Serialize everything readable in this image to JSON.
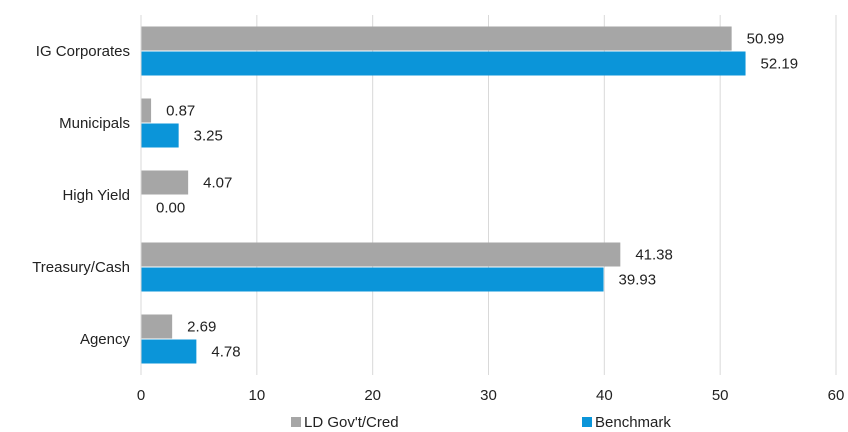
{
  "chart_data": {
    "type": "bar",
    "orientation": "horizontal",
    "categories": [
      "IG Corporates",
      "Municipals",
      "High Yield",
      "Treasury/Cash",
      "Agency"
    ],
    "series": [
      {
        "name": "LD Gov't/Cred",
        "values": [
          50.99,
          0.87,
          4.07,
          41.38,
          2.69
        ],
        "labels": [
          "50.99",
          "0.87",
          "4.07",
          "41.38",
          "2.69"
        ],
        "color": "#a6a6a6"
      },
      {
        "name": "Benchmark",
        "values": [
          52.19,
          3.25,
          0.0,
          39.93,
          4.78
        ],
        "labels": [
          "52.19",
          "3.25",
          "0.00",
          "39.93",
          "4.78"
        ],
        "color": "#0b95d9"
      }
    ],
    "xlim": [
      0,
      60
    ],
    "xticks": [
      "0",
      "10",
      "20",
      "30",
      "40",
      "50",
      "60"
    ],
    "grid": "vertical",
    "legend_position": "bottom",
    "title": "",
    "xlabel": "",
    "ylabel": ""
  }
}
